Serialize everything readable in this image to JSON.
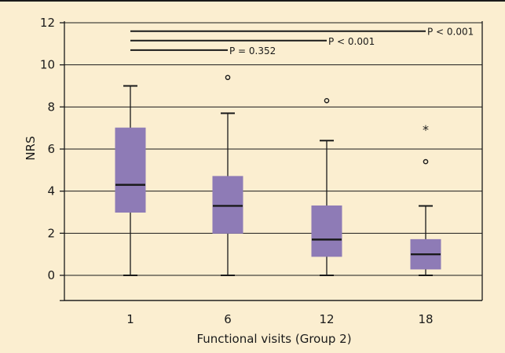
{
  "chart_data": {
    "type": "box",
    "xlabel": "Functional visits (Group 2)",
    "ylabel": "NRS",
    "ylim": [
      0,
      12
    ],
    "yticks": [
      0,
      2,
      4,
      6,
      8,
      10,
      12
    ],
    "grid": true,
    "categories": [
      "1",
      "6",
      "12",
      "18"
    ],
    "boxes": [
      {
        "category": "1",
        "whisker_low": 0,
        "q1": 3,
        "median": 4.3,
        "q3": 7,
        "whisker_high": 9,
        "outliers": [],
        "extremes": []
      },
      {
        "category": "6",
        "whisker_low": 0,
        "q1": 2,
        "median": 3.3,
        "q3": 4.7,
        "whisker_high": 7.7,
        "outliers": [
          9.4
        ],
        "extremes": []
      },
      {
        "category": "12",
        "whisker_low": 0,
        "q1": 0.9,
        "median": 1.7,
        "q3": 3.3,
        "whisker_high": 6.4,
        "outliers": [
          8.3
        ],
        "extremes": []
      },
      {
        "category": "18",
        "whisker_low": 0,
        "q1": 0.3,
        "median": 1.0,
        "q3": 1.7,
        "whisker_high": 3.3,
        "outliers": [
          5.4
        ],
        "extremes": [
          7
        ]
      }
    ],
    "comparisons": [
      {
        "from": "1",
        "to": "6",
        "label": "P = 0.352",
        "y": 10.7
      },
      {
        "from": "1",
        "to": "12",
        "label": "P < 0.001",
        "y": 11.15
      },
      {
        "from": "1",
        "to": "18",
        "label": "P < 0.001",
        "y": 11.6
      }
    ],
    "colors": {
      "box": "#8e7bb6",
      "line": "#1a1a1a",
      "background": "#fbeed0"
    }
  }
}
